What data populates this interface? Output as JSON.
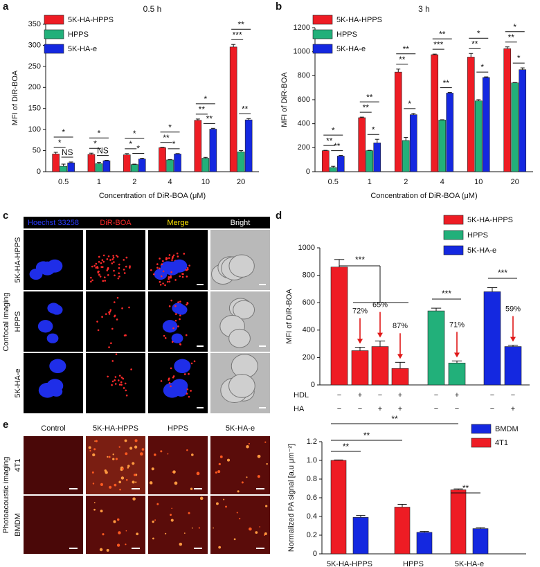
{
  "panel_labels": [
    "a",
    "b",
    "c",
    "d",
    "e"
  ],
  "chart_data": [
    {
      "type": "bar",
      "title": "0.5 h",
      "xlabel": "Concentration of DiR-BOA (μM)",
      "ylabel": "MFI of DiR-BOA",
      "categories": [
        "0.5",
        "1",
        "2",
        "4",
        "10",
        "20"
      ],
      "series": [
        {
          "name": "5K-HA-HPPS",
          "color": "#ee1c24",
          "values": [
            42,
            41,
            40,
            57,
            122,
            296
          ],
          "errors": [
            4,
            3,
            3,
            1,
            3,
            6
          ]
        },
        {
          "name": "HPPS",
          "color": "#22b07a",
          "values": [
            13,
            19,
            17,
            28,
            32,
            47
          ],
          "errors": [
            5,
            3,
            1,
            1,
            2,
            3
          ]
        },
        {
          "name": "5K-HA-e",
          "color": "#1428e0",
          "values": [
            21,
            26,
            30,
            42,
            101,
            123
          ],
          "errors": [
            2,
            1,
            2,
            1,
            2,
            3
          ]
        }
      ],
      "ylim": [
        0,
        350
      ],
      "yticks": [
        0,
        50,
        100,
        150,
        200,
        250,
        300,
        350
      ],
      "annotations": [
        "*",
        "*",
        "NS",
        "*",
        "*",
        "NS",
        "*",
        "*",
        "*",
        "*",
        "**",
        "*",
        "*",
        "**",
        "**",
        "**",
        "***",
        "**"
      ]
    },
    {
      "type": "bar",
      "title": "3 h",
      "xlabel": "Concentration of DiR-BOA (μM)",
      "ylabel": "MFI of DiR-BOA",
      "categories": [
        "0.5",
        "1",
        "2",
        "4",
        "10",
        "20"
      ],
      "series": [
        {
          "name": "5K-HA-HPPS",
          "color": "#ee1c24",
          "values": [
            175,
            450,
            830,
            975,
            955,
            1025
          ],
          "errors": [
            3,
            5,
            25,
            5,
            30,
            15
          ]
        },
        {
          "name": "HPPS",
          "color": "#22b07a",
          "values": [
            35,
            175,
            260,
            430,
            590,
            740
          ],
          "errors": [
            10,
            3,
            25,
            3,
            10,
            3
          ]
        },
        {
          "name": "5K-HA-e",
          "color": "#1428e0",
          "values": [
            130,
            240,
            475,
            655,
            785,
            850
          ],
          "errors": [
            5,
            30,
            10,
            5,
            5,
            15
          ]
        }
      ],
      "ylim": [
        0,
        1200
      ],
      "yticks": [
        0,
        200,
        400,
        600,
        800,
        1000,
        1200
      ],
      "annotations": [
        "*",
        "**",
        "**",
        "**",
        "**",
        "*",
        "**",
        "**",
        "*",
        "**",
        "***",
        "**",
        "*",
        "**",
        "*",
        "*",
        "**",
        "*"
      ]
    },
    {
      "type": "bar",
      "ylabel": "MFI of DiR-BOA",
      "categories": [
        null,
        null,
        null,
        null,
        null,
        null,
        null,
        null
      ],
      "series": [
        {
          "name": "5K-HA-HPPS",
          "color": "#ee1c24",
          "values": [
            860,
            250,
            280,
            120,
            null,
            null,
            null,
            null
          ],
          "errors": [
            55,
            25,
            40,
            45,
            null,
            null,
            null,
            null
          ]
        },
        {
          "name": "HPPS",
          "color": "#22b07a",
          "values": [
            null,
            null,
            null,
            null,
            540,
            160,
            null,
            null
          ],
          "errors": [
            null,
            null,
            null,
            null,
            20,
            15,
            null,
            null
          ]
        },
        {
          "name": "5K-HA-e",
          "color": "#1428e0",
          "values": [
            null,
            null,
            null,
            null,
            null,
            null,
            680,
            280
          ],
          "errors": [
            null,
            null,
            null,
            null,
            null,
            null,
            30,
            10
          ]
        }
      ],
      "ylim": [
        0,
        1000
      ],
      "yticks": [
        0,
        200,
        400,
        600,
        800,
        1000
      ],
      "annotations": [
        "***",
        "***",
        "***"
      ],
      "percent_labels": [
        "72%",
        "65%",
        "87%",
        "71%",
        "59%"
      ],
      "conditions": [
        {
          "name": "HDL",
          "values": [
            "−",
            "+",
            "−",
            "+",
            "−",
            "+",
            "−",
            "−"
          ]
        },
        {
          "name": "HA",
          "values": [
            "−",
            "−",
            "+",
            "+",
            "−",
            "−",
            "−",
            "+"
          ]
        }
      ]
    },
    {
      "type": "bar",
      "ylabel": "Normalized PA signal [a.u μm⁻²]",
      "categories": [
        "5K-HA-HPPS",
        "HPPS",
        "5K-HA-e"
      ],
      "series": [
        {
          "name": "BMDM",
          "color": "#1428e0",
          "values": [
            0.39,
            0.23,
            0.27
          ],
          "errors": [
            0.02,
            0.01,
            0.01
          ]
        },
        {
          "name": "4T1",
          "color": "#ee1c24",
          "values": [
            1.0,
            0.5,
            0.685
          ],
          "errors": [
            0.005,
            0.03,
            0.01
          ]
        }
      ],
      "ylim": [
        0,
        1.2
      ],
      "yticks": [
        0,
        0.2,
        0.4,
        0.6,
        0.8,
        {
          "value": 1,
          "label": "1.0"
        },
        1.2
      ],
      "annotations": [
        "**",
        "**",
        "**",
        "**"
      ]
    }
  ],
  "confocal": {
    "title": "Confocal imaging",
    "channels": [
      "Hoechst 33258",
      "DiR-BOA",
      "Merge",
      "Bright"
    ],
    "channel_colors": [
      "#2b3cff",
      "#ff2a2a",
      "#ffe600",
      "#ffffff"
    ],
    "rows": [
      "5K-HA-HPPS",
      "HPPS",
      "5K-HA-e"
    ]
  },
  "photoacoustic": {
    "title": "Photoacoustic imaging",
    "columns": [
      "Control",
      "5K-HA-HPPS",
      "HPPS",
      "5K-HA-e"
    ],
    "rows": [
      "4T1",
      "BMDM"
    ]
  }
}
